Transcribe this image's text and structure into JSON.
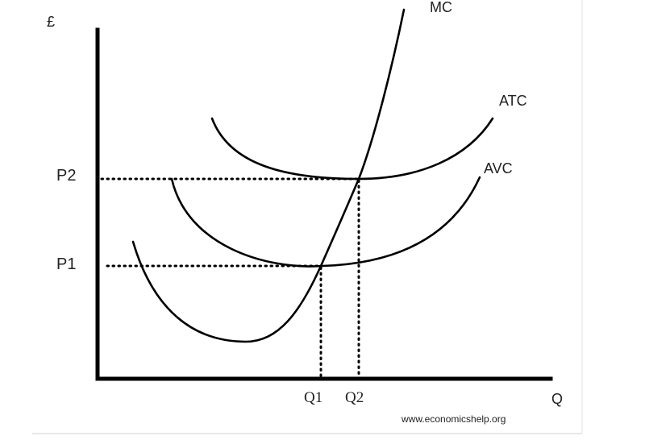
{
  "diagram": {
    "y_axis_label": "£",
    "x_axis_label": "Q",
    "price_labels": [
      "P2",
      "P1"
    ],
    "quantity_labels": [
      "Q1",
      "Q2"
    ],
    "curve_labels": {
      "mc": "MC",
      "atc": "ATC",
      "avc": "AVC"
    },
    "watermark": "www.economicshelp.org"
  }
}
